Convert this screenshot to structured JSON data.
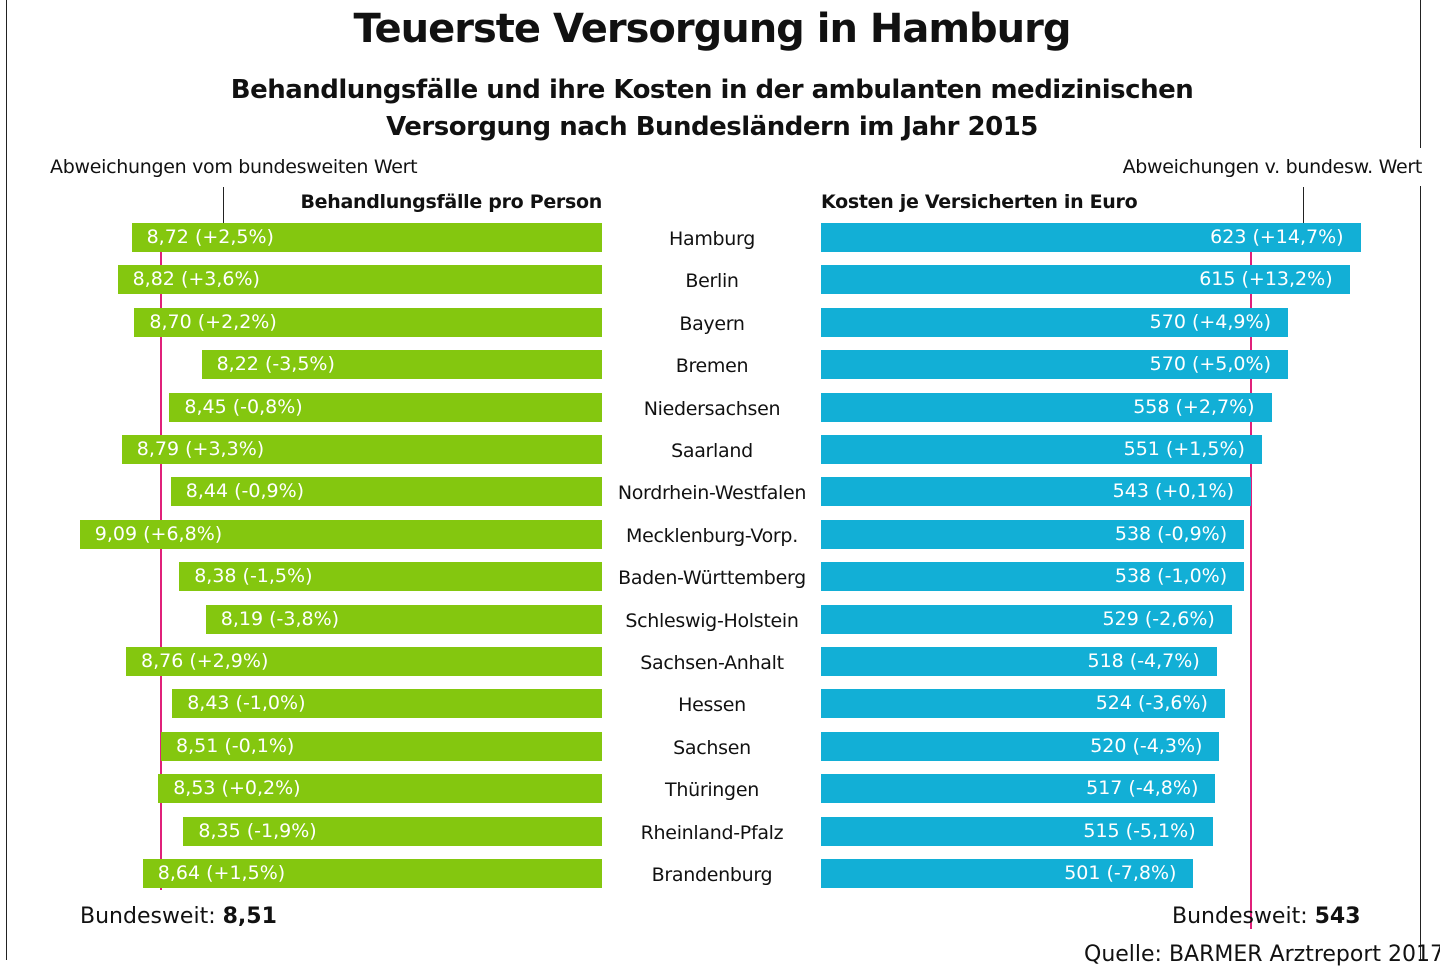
{
  "chart_data": [
    {
      "type": "bar",
      "orientation": "horizontal",
      "title": "Teuerste Versorgung in Hamburg",
      "subtitle": "Behandlungsfälle und ihre Kosten in der ambulanten medizinischen Versorgung nach Bundesländern im Jahr 2015",
      "panel_title": "Behandlungsfälle pro Person",
      "deviation_note": "Abweichungen vom bundesweiten Wert",
      "reference_label": "Bundesweit:",
      "reference_value": "8,51",
      "reference_number": 8.51,
      "categories": [
        "Hamburg",
        "Berlin",
        "Bayern",
        "Bremen",
        "Niedersachsen",
        "Saarland",
        "Nordrhein-Westfalen",
        "Mecklenburg-Vorp.",
        "Baden-Württemberg",
        "Schleswig-Holstein",
        "Sachsen-Anhalt",
        "Hessen",
        "Sachsen",
        "Thüringen",
        "Rheinland-Pfalz",
        "Brandenburg"
      ],
      "values": [
        8.72,
        8.82,
        8.7,
        8.22,
        8.45,
        8.79,
        8.44,
        9.09,
        8.38,
        8.19,
        8.76,
        8.43,
        8.51,
        8.53,
        8.35,
        8.64
      ],
      "labels": [
        "8,72 (+2,5%)",
        "8,82 (+3,6%)",
        "8,70 (+2,2%)",
        "8,22 (-3,5%)",
        "8,45 (-0,8%)",
        "8,79 (+3,3%)",
        "8,44 (-0,9%)",
        "9,09 (+6,8%)",
        "8,38 (-1,5%)",
        "8,19 (-3,8%)",
        "8,76 (+2,9%)",
        "8,43 (-1,0%)",
        "8,51 (-0,1%)",
        "8,53 (+0,2%)",
        "8,35 (-1,9%)",
        "8,64 (+1,5%)"
      ],
      "color": "#84c70f",
      "reference_color": "#e0207a"
    },
    {
      "type": "bar",
      "orientation": "horizontal",
      "panel_title": "Kosten je Versicherten in Euro",
      "deviation_note": "Abweichungen v. bundesw. Wert",
      "reference_label": "Bundesweit:",
      "reference_value": "543",
      "reference_number": 543,
      "values": [
        623,
        615,
        570,
        570,
        558,
        551,
        543,
        538,
        538,
        529,
        518,
        524,
        520,
        517,
        515,
        501
      ],
      "labels": [
        "623 (+14,7%)",
        "615 (+13,2%)",
        "570 (+4,9%)",
        "570 (+5,0%)",
        "558 (+2,7%)",
        "551 (+1,5%)",
        "543 (+0,1%)",
        "538 (-0,9%)",
        "538 (-1,0%)",
        "529 (-2,6%)",
        "518 (-4,7%)",
        "524 (-3,6%)",
        "520 (-4,3%)",
        "517 (-4,8%)",
        "515 (-5,1%)",
        "501 (-7,8%)"
      ],
      "color": "#12afd6",
      "reference_color": "#e0207a"
    }
  ],
  "source": "Quelle: BARMER Arztreport 2017"
}
